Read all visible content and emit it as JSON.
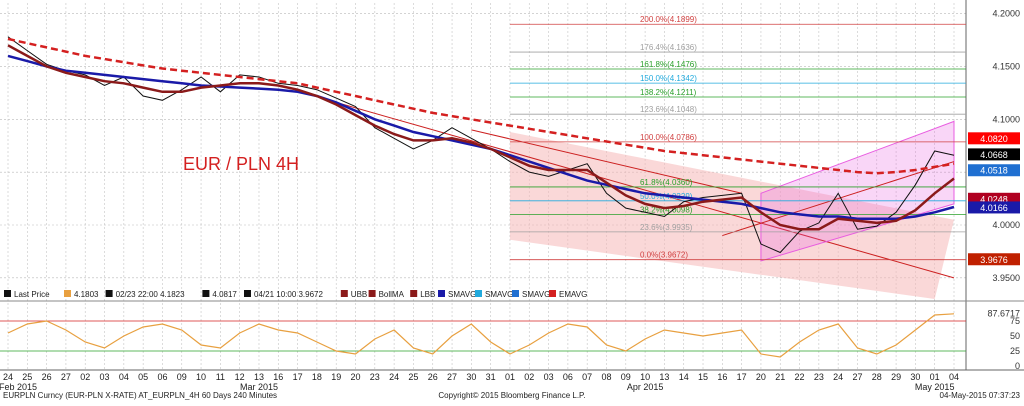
{
  "chart_data": {
    "type": "line",
    "title": "EUR / PLN 4H",
    "ylim": [
      3.93,
      4.21
    ],
    "y_ticks": [
      4.2,
      4.15,
      4.1,
      4.05,
      4.0,
      3.95
    ],
    "y_tick_labels": [
      "4.2000",
      "4.1500",
      "4.1000",
      "4.0500",
      "4.0000",
      "3.9500"
    ],
    "current_price_labels": [
      {
        "text": "4.0820",
        "value": 4.082,
        "color": "#ff0000"
      },
      {
        "text": "4.0668",
        "value": 4.0668,
        "color": "#000000"
      },
      {
        "text": "4.0518",
        "value": 4.0518,
        "color": "#1f6fd1"
      },
      {
        "text": "4.0248",
        "value": 4.0248,
        "color": "#b00020"
      },
      {
        "text": "4.0166",
        "value": 4.0166,
        "color": "#1a1aa8"
      },
      {
        "text": "3.9676",
        "value": 3.9676,
        "color": "#c02000"
      }
    ],
    "fibonacci": [
      {
        "label": "200.0%(4.1899)",
        "value": 4.1899,
        "color": "#d04040"
      },
      {
        "label": "176.4%(4.1636)",
        "value": 4.1636,
        "color": "#a0a0a0"
      },
      {
        "label": "161.8%(4.1476)",
        "value": 4.1476,
        "color": "#2aa02a"
      },
      {
        "label": "150.0%(4.1342)",
        "value": 4.1342,
        "color": "#22aadd"
      },
      {
        "label": "138.2%(4.1211)",
        "value": 4.1211,
        "color": "#2aa02a"
      },
      {
        "label": "123.6%(4.1048)",
        "value": 4.1048,
        "color": "#a0a0a0"
      },
      {
        "label": "100.0%(4.0786)",
        "value": 4.0786,
        "color": "#d04040"
      },
      {
        "label": "61.8%(4.0360)",
        "value": 4.036,
        "color": "#2aa02a"
      },
      {
        "label": "50.0%(4.0229)",
        "value": 4.0229,
        "color": "#22aadd"
      },
      {
        "label": "38.2%(4.0098)",
        "value": 4.0098,
        "color": "#2aa02a"
      },
      {
        "label": "23.6%(3.9935)",
        "value": 3.9935,
        "color": "#a0a0a0"
      },
      {
        "label": "0.0%(3.9672)",
        "value": 3.9672,
        "color": "#d04040"
      }
    ],
    "x_day_labels": [
      "24",
      "25",
      "26",
      "27",
      "02",
      "03",
      "04",
      "05",
      "06",
      "09",
      "10",
      "11",
      "12",
      "13",
      "16",
      "17",
      "18",
      "19",
      "20",
      "23",
      "24",
      "25",
      "26",
      "27",
      "30",
      "31",
      "01",
      "02",
      "03",
      "06",
      "07",
      "08",
      "09",
      "10",
      "13",
      "14",
      "15",
      "16",
      "17",
      "20",
      "21",
      "22",
      "23",
      "24",
      "27",
      "28",
      "29",
      "30",
      "01",
      "04"
    ],
    "x_month_labels": [
      {
        "text": "Feb 2015",
        "index": 0
      },
      {
        "text": "Mar 2015",
        "index": 13
      },
      {
        "text": "Apr 2015",
        "index": 33
      },
      {
        "text": "May 2015",
        "index": 48
      }
    ],
    "series": [
      {
        "name": "Last Price",
        "color": "#111111",
        "values": [
          4.178,
          4.165,
          4.152,
          4.146,
          4.142,
          4.132,
          4.14,
          4.122,
          4.118,
          4.128,
          4.14,
          4.126,
          4.142,
          4.14,
          4.134,
          4.132,
          4.128,
          4.12,
          4.112,
          4.092,
          4.082,
          4.072,
          4.08,
          4.092,
          4.082,
          4.072,
          4.06,
          4.05,
          4.046,
          4.052,
          4.058,
          4.03,
          4.016,
          4.012,
          4.008,
          4.022,
          4.026,
          4.028,
          4.03,
          3.982,
          3.974,
          3.994,
          4.002,
          4.03,
          3.996,
          3.999,
          4.012,
          4.038,
          4.07,
          4.066
        ]
      },
      {
        "name": "SMAVG",
        "color": "#1a1aa8",
        "values": [
          4.16,
          4.155,
          4.15,
          4.146,
          4.144,
          4.142,
          4.14,
          4.138,
          4.136,
          4.134,
          4.132,
          4.131,
          4.13,
          4.129,
          4.128,
          4.126,
          4.122,
          4.116,
          4.108,
          4.1,
          4.094,
          4.088,
          4.084,
          4.08,
          4.076,
          4.072,
          4.066,
          4.06,
          4.054,
          4.048,
          4.042,
          4.038,
          4.034,
          4.03,
          4.028,
          4.026,
          4.024,
          4.022,
          4.02,
          4.016,
          4.012,
          4.01,
          4.008,
          4.008,
          4.006,
          4.006,
          4.006,
          4.008,
          4.012,
          4.017
        ]
      },
      {
        "name": "EMAVG",
        "color": "#d42020",
        "values": [
          4.176,
          4.172,
          4.168,
          4.164,
          4.16,
          4.157,
          4.154,
          4.151,
          4.148,
          4.146,
          4.144,
          4.142,
          4.14,
          4.138,
          4.136,
          4.134,
          4.13,
          4.126,
          4.122,
          4.118,
          4.114,
          4.11,
          4.106,
          4.103,
          4.1,
          4.097,
          4.094,
          4.091,
          4.088,
          4.085,
          4.082,
          4.079,
          4.076,
          4.073,
          4.07,
          4.068,
          4.066,
          4.064,
          4.062,
          4.06,
          4.058,
          4.056,
          4.054,
          4.052,
          4.05,
          4.049,
          4.05,
          4.052,
          4.055,
          4.058
        ]
      },
      {
        "name": "BollMA",
        "color": "#8b1a1a",
        "values": [
          4.17,
          4.16,
          4.15,
          4.144,
          4.14,
          4.136,
          4.134,
          4.13,
          4.126,
          4.126,
          4.13,
          4.132,
          4.134,
          4.134,
          4.132,
          4.128,
          4.122,
          4.114,
          4.104,
          4.094,
          4.086,
          4.08,
          4.08,
          4.082,
          4.078,
          4.072,
          4.064,
          4.056,
          4.052,
          4.052,
          4.052,
          4.04,
          4.028,
          4.02,
          4.016,
          4.018,
          4.022,
          4.024,
          4.026,
          4.012,
          4.0,
          3.996,
          3.996,
          4.006,
          4.004,
          4.002,
          4.004,
          4.014,
          4.03,
          4.044
        ]
      }
    ],
    "legend": [
      {
        "label": "Last Price",
        "color": "#111111"
      },
      {
        "label": "4.1803",
        "color": "#e8a040"
      },
      {
        "label": "02/23 22:00 4.1823",
        "color": "#111111"
      },
      {
        "label": "4.0817",
        "color": "#111111"
      },
      {
        "label": "04/21 10:00 3.9672",
        "color": "#111111"
      },
      {
        "label": "UBB",
        "color": "#8b1a1a"
      },
      {
        "label": "BollMA",
        "color": "#8b1a1a"
      },
      {
        "label": "LBB",
        "color": "#8b1a1a"
      },
      {
        "label": "SMAVG",
        "color": "#1a1aa8"
      },
      {
        "label": "SMAVG",
        "color": "#22aadd"
      },
      {
        "label": "SMAVG",
        "color": "#1f6fd1"
      },
      {
        "label": "EMAVG",
        "color": "#d42020"
      }
    ],
    "stochastic": {
      "labels": [
        "87.6717",
        "75",
        "50",
        "25",
        "0"
      ],
      "levels": [
        87.6717,
        75,
        50,
        25,
        0
      ],
      "values": [
        55,
        70,
        75,
        60,
        40,
        30,
        50,
        65,
        70,
        60,
        35,
        30,
        55,
        70,
        60,
        55,
        40,
        25,
        20,
        45,
        60,
        30,
        20,
        50,
        70,
        40,
        20,
        35,
        55,
        70,
        65,
        35,
        25,
        45,
        60,
        55,
        50,
        55,
        60,
        20,
        15,
        40,
        60,
        70,
        30,
        20,
        35,
        60,
        85,
        87
      ]
    }
  },
  "footer": {
    "left": "EURPLN Curncy (EUR-PLN X-RATE) AT_EURPLN_4H 60 Days 240 Minutes",
    "center": "Copyright© 2015 Bloomberg Finance L.P.",
    "right": "04-May-2015 07:37:23"
  },
  "colors": {
    "background": "#ffffff",
    "grid": "#b0b0b0",
    "channel_fill": "#f6b8b8",
    "channel_pink": "#e85ce0"
  }
}
